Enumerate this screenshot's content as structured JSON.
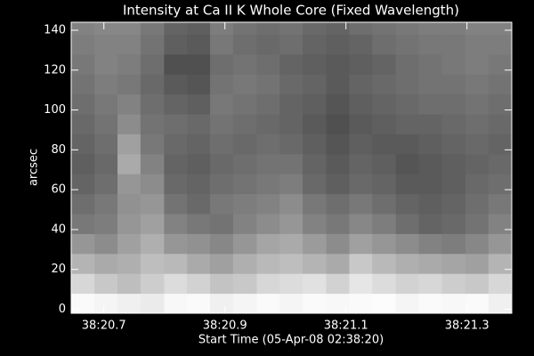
{
  "chart_data": {
    "type": "heatmap",
    "title": "Intensity at Ca II K Whole Core (Fixed Wavelength)",
    "xlabel": "Start Time (05-Apr-08 02:38:20)",
    "ylabel": "arcsec",
    "xlim": [
      20.646,
      21.374
    ],
    "ylim": [
      -2,
      144
    ],
    "xticks": [
      {
        "value": 20.7,
        "label": "38:20.7"
      },
      {
        "value": 20.9,
        "label": "38:20.9"
      },
      {
        "value": 21.1,
        "label": "38:21.1"
      },
      {
        "value": 21.3,
        "label": "38:21.3"
      }
    ],
    "yticks": [
      0,
      20,
      40,
      60,
      80,
      100,
      120,
      140
    ],
    "x": [
      20.665,
      20.704,
      20.742,
      20.78,
      20.819,
      20.857,
      20.895,
      20.933,
      20.972,
      21.01,
      21.048,
      21.087,
      21.125,
      21.163,
      21.202,
      21.24,
      21.278,
      21.317,
      21.355
    ],
    "y": [
      3,
      13,
      23,
      33,
      43,
      53,
      63,
      73,
      83,
      93,
      103,
      113,
      123,
      133,
      143
    ],
    "z": [
      [
        250,
        245,
        240,
        235,
        248,
        250,
        240,
        245,
        250,
        245,
        250,
        248,
        250,
        252,
        245,
        250,
        248,
        250,
        240
      ],
      [
        215,
        200,
        190,
        205,
        220,
        210,
        195,
        200,
        215,
        220,
        225,
        210,
        230,
        220,
        210,
        215,
        205,
        200,
        215
      ],
      [
        180,
        170,
        175,
        190,
        185,
        170,
        160,
        175,
        185,
        190,
        180,
        170,
        200,
        185,
        175,
        170,
        165,
        160,
        180
      ],
      [
        150,
        140,
        160,
        175,
        150,
        145,
        135,
        150,
        165,
        170,
        155,
        140,
        160,
        150,
        140,
        130,
        125,
        135,
        150
      ],
      [
        120,
        125,
        150,
        160,
        130,
        120,
        115,
        130,
        140,
        150,
        130,
        120,
        135,
        125,
        110,
        100,
        105,
        115,
        130
      ],
      [
        110,
        120,
        145,
        150,
        115,
        105,
        120,
        125,
        130,
        140,
        120,
        110,
        120,
        110,
        100,
        95,
        100,
        110,
        120
      ],
      [
        100,
        110,
        150,
        140,
        105,
        100,
        110,
        115,
        120,
        125,
        105,
        95,
        105,
        100,
        90,
        90,
        95,
        105,
        110
      ],
      [
        95,
        105,
        170,
        130,
        100,
        95,
        105,
        110,
        115,
        115,
        100,
        90,
        100,
        95,
        85,
        90,
        95,
        100,
        105
      ],
      [
        100,
        110,
        160,
        120,
        105,
        100,
        110,
        105,
        110,
        105,
        95,
        85,
        95,
        90,
        90,
        95,
        100,
        105,
        100
      ],
      [
        105,
        115,
        140,
        115,
        110,
        105,
        115,
        110,
        105,
        100,
        90,
        80,
        90,
        95,
        100,
        100,
        105,
        110,
        105
      ],
      [
        110,
        120,
        130,
        110,
        100,
        95,
        120,
        115,
        110,
        100,
        95,
        85,
        95,
        100,
        105,
        110,
        110,
        115,
        110
      ],
      [
        115,
        125,
        120,
        105,
        90,
        85,
        115,
        120,
        115,
        105,
        100,
        90,
        100,
        105,
        110,
        115,
        115,
        120,
        115
      ],
      [
        120,
        130,
        125,
        110,
        80,
        80,
        110,
        115,
        110,
        100,
        95,
        90,
        95,
        100,
        110,
        115,
        120,
        125,
        120
      ],
      [
        125,
        130,
        130,
        115,
        95,
        90,
        120,
        110,
        105,
        110,
        100,
        95,
        100,
        110,
        115,
        120,
        120,
        125,
        125
      ],
      [
        130,
        135,
        135,
        120,
        100,
        95,
        125,
        115,
        110,
        115,
        105,
        100,
        110,
        115,
        120,
        125,
        125,
        130,
        130
      ]
    ]
  }
}
